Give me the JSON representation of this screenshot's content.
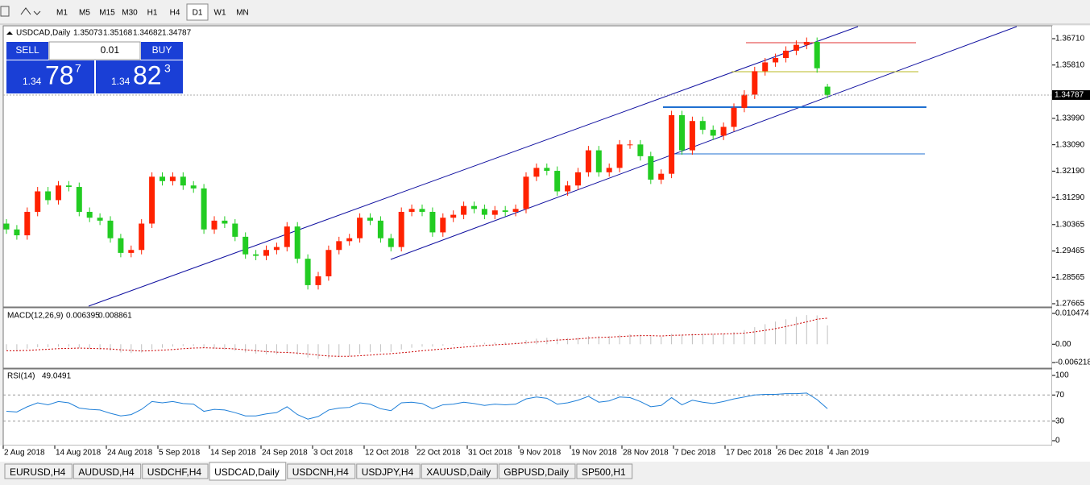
{
  "toolbar": {
    "timeframes": [
      "M1",
      "M5",
      "M15",
      "M30",
      "H1",
      "H4",
      "D1",
      "W1",
      "MN"
    ],
    "active_timeframe": 6
  },
  "chart": {
    "symbol": "USDCAD,Daily",
    "up_color": "#ff2200",
    "down_color": "#22cc22",
    "trade_panel": {
      "sell": "SELL",
      "buy": "BUY",
      "lot": "0.01",
      "bid": {
        "big": "1.34",
        "main": "78",
        "pip": "7"
      },
      "ask": {
        "big": "1.34",
        "main": "82",
        "pip": "3"
      }
    },
    "price_axis": {
      "range": [
        1.27665,
        1.3671
      ],
      "ticks": [
        {
          "value": 1.3671,
          "label": "1.36710"
        },
        {
          "value": 1.3581,
          "label": "1.35810"
        },
        {
          "value": 1.3399,
          "label": "1.33990"
        },
        {
          "value": 1.3309,
          "label": "1.33090"
        },
        {
          "value": 1.3219,
          "label": "1.32190"
        },
        {
          "value": 1.3129,
          "label": "1.31290"
        },
        {
          "value": 1.30365,
          "label": "1.30365"
        },
        {
          "value": 1.29465,
          "label": "1.29465"
        },
        {
          "value": 1.28565,
          "label": "1.28565"
        },
        {
          "value": 1.27665,
          "label": "1.27665"
        }
      ]
    },
    "candles": [
      [
        1.304,
        1.3055,
        1.3005,
        1.302
      ],
      [
        1.302,
        1.3035,
        1.2985,
        1.3
      ],
      [
        1.3,
        1.3095,
        1.2985,
        1.308
      ],
      [
        1.308,
        1.3165,
        1.3065,
        1.315
      ],
      [
        1.315,
        1.3165,
        1.3105,
        1.312
      ],
      [
        1.312,
        1.3185,
        1.3105,
        1.317
      ],
      [
        1.317,
        1.3185,
        1.315,
        1.3165
      ],
      [
        1.3165,
        1.318,
        1.3065,
        1.308
      ],
      [
        1.308,
        1.3095,
        1.3045,
        1.306
      ],
      [
        1.306,
        1.3075,
        1.3035,
        1.305
      ],
      [
        1.305,
        1.3065,
        1.2975,
        1.299
      ],
      [
        1.299,
        1.3005,
        1.2925,
        1.294
      ],
      [
        1.294,
        1.2965,
        1.2925,
        1.295
      ],
      [
        1.295,
        1.3055,
        1.2935,
        1.304
      ],
      [
        1.304,
        1.3215,
        1.3025,
        1.32
      ],
      [
        1.32,
        1.3215,
        1.317,
        1.3185
      ],
      [
        1.3185,
        1.3215,
        1.317,
        1.32
      ],
      [
        1.32,
        1.3215,
        1.3155,
        1.317
      ],
      [
        1.317,
        1.3185,
        1.3145,
        1.316
      ],
      [
        1.316,
        1.3175,
        1.3005,
        1.302
      ],
      [
        1.302,
        1.3065,
        1.3005,
        1.305
      ],
      [
        1.305,
        1.3065,
        1.3025,
        1.304
      ],
      [
        1.304,
        1.3055,
        1.298,
        1.2995
      ],
      [
        1.2995,
        1.301,
        1.292,
        1.2935
      ],
      [
        1.2935,
        1.295,
        1.2915,
        1.293
      ],
      [
        1.293,
        1.2965,
        1.2915,
        1.295
      ],
      [
        1.295,
        1.2975,
        1.2935,
        1.296
      ],
      [
        1.296,
        1.3045,
        1.2945,
        1.303
      ],
      [
        1.303,
        1.3045,
        1.2905,
        1.292
      ],
      [
        1.292,
        1.2935,
        1.2815,
        1.283
      ],
      [
        1.283,
        1.2875,
        1.2815,
        1.286
      ],
      [
        1.286,
        1.2965,
        1.2845,
        1.295
      ],
      [
        1.295,
        1.2995,
        1.2935,
        1.298
      ],
      [
        1.298,
        1.3005,
        1.2965,
        1.299
      ],
      [
        1.299,
        1.3075,
        1.2975,
        1.306
      ],
      [
        1.306,
        1.3075,
        1.3035,
        1.305
      ],
      [
        1.305,
        1.3065,
        1.2975,
        1.299
      ],
      [
        1.299,
        1.3005,
        1.2945,
        1.296
      ],
      [
        1.296,
        1.3095,
        1.2945,
        1.308
      ],
      [
        1.308,
        1.3105,
        1.3065,
        1.309
      ],
      [
        1.309,
        1.3105,
        1.3065,
        1.308
      ],
      [
        1.308,
        1.3095,
        1.2995,
        1.301
      ],
      [
        1.301,
        1.3075,
        1.2995,
        1.306
      ],
      [
        1.306,
        1.3085,
        1.3045,
        1.307
      ],
      [
        1.307,
        1.3115,
        1.3055,
        1.31
      ],
      [
        1.31,
        1.3115,
        1.3075,
        1.309
      ],
      [
        1.309,
        1.3105,
        1.3055,
        1.307
      ],
      [
        1.307,
        1.31,
        1.3055,
        1.3085
      ],
      [
        1.3085,
        1.31,
        1.3065,
        1.308
      ],
      [
        1.308,
        1.3105,
        1.3065,
        1.309
      ],
      [
        1.309,
        1.3215,
        1.3075,
        1.32
      ],
      [
        1.32,
        1.3245,
        1.3185,
        1.323
      ],
      [
        1.323,
        1.3245,
        1.3205,
        1.322
      ],
      [
        1.322,
        1.3235,
        1.3135,
        1.315
      ],
      [
        1.315,
        1.3185,
        1.3135,
        1.317
      ],
      [
        1.317,
        1.323,
        1.3155,
        1.3215
      ],
      [
        1.3215,
        1.3305,
        1.32,
        1.329
      ],
      [
        1.329,
        1.3305,
        1.32,
        1.3215
      ],
      [
        1.3215,
        1.3245,
        1.32,
        1.323
      ],
      [
        1.323,
        1.3325,
        1.3215,
        1.331
      ],
      [
        1.331,
        1.3325,
        1.3295,
        1.331
      ],
      [
        1.331,
        1.3325,
        1.3255,
        1.327
      ],
      [
        1.327,
        1.3285,
        1.3175,
        1.319
      ],
      [
        1.319,
        1.3225,
        1.3175,
        1.321
      ],
      [
        1.321,
        1.3425,
        1.3195,
        1.341
      ],
      [
        1.341,
        1.3425,
        1.3275,
        1.329
      ],
      [
        1.329,
        1.3405,
        1.3275,
        1.339
      ],
      [
        1.339,
        1.3405,
        1.3345,
        1.336
      ],
      [
        1.336,
        1.3375,
        1.3325,
        1.334
      ],
      [
        1.334,
        1.3385,
        1.3325,
        1.337
      ],
      [
        1.337,
        1.345,
        1.3355,
        1.3435
      ],
      [
        1.3435,
        1.3495,
        1.342,
        1.348
      ],
      [
        1.348,
        1.3575,
        1.3465,
        1.356
      ],
      [
        1.356,
        1.3605,
        1.3545,
        1.359
      ],
      [
        1.359,
        1.362,
        1.3575,
        1.3605
      ],
      [
        1.3605,
        1.3645,
        1.359,
        1.363
      ],
      [
        1.363,
        1.3665,
        1.3615,
        1.365
      ],
      [
        1.365,
        1.3675,
        1.3635,
        1.366
      ],
      [
        1.366,
        1.3675,
        1.3555,
        1.357
      ],
      [
        1.35073,
        1.35168,
        1.34682,
        1.34787
      ]
    ],
    "dates": [
      "2 Aug 2018",
      "14 Aug 2018",
      "24 Aug 2018",
      "5 Sep 2018",
      "14 Sep 2018",
      "24 Sep 2018",
      "3 Oct 2018",
      "12 Oct 2018",
      "22 Oct 2018",
      "31 Oct 2018",
      "9 Nov 2018",
      "19 Nov 2018",
      "28 Nov 2018",
      "7 Dec 2018",
      "17 Dec 2018",
      "26 Dec 2018",
      "4 Jan 2019"
    ]
  },
  "macd": {
    "title": "MACD(12,26,9)",
    "range": [
      -0.006218,
      0.010474
    ],
    "ticks": [
      0.010474,
      {
        "value": 0,
        "label": "0.00"
      },
      -0.006218
    ],
    "bar_color": "#c0c0c0",
    "signal_color": "#cc0000",
    "values": [
      -0.002,
      -0.002,
      -0.0015,
      -0.001,
      -0.001,
      -0.0008,
      -0.0008,
      -0.0012,
      -0.0015,
      -0.0018,
      -0.0022,
      -0.0028,
      -0.003,
      -0.0028,
      -0.0018,
      -0.0012,
      -0.0008,
      -0.0006,
      -0.0006,
      -0.0012,
      -0.0015,
      -0.0018,
      -0.0022,
      -0.0028,
      -0.0032,
      -0.0034,
      -0.0034,
      -0.003,
      -0.0035,
      -0.0045,
      -0.005,
      -0.0048,
      -0.0044,
      -0.004,
      -0.0032,
      -0.0027,
      -0.0026,
      -0.0026,
      -0.0018,
      -0.0012,
      -0.0008,
      -0.0008,
      -0.0005,
      -0.0002,
      0.0002,
      0.0004,
      0.0005,
      0.0006,
      0.0007,
      0.0008,
      0.0014,
      0.0019,
      0.0022,
      0.0021,
      0.0021,
      0.0022,
      0.0028,
      0.0028,
      0.0028,
      0.0032,
      0.0034,
      0.0033,
      0.0027,
      0.0025,
      0.0035,
      0.0033,
      0.0036,
      0.0036,
      0.0035,
      0.0036,
      0.0041,
      0.0048,
      0.0058,
      0.0068,
      0.0077,
      0.0085,
      0.0093,
      0.0099,
      0.0098,
      0.006395
    ],
    "signal": [
      -0.0022,
      -0.0022,
      -0.0021,
      -0.0019,
      -0.0017,
      -0.0015,
      -0.0014,
      -0.0013,
      -0.0014,
      -0.0015,
      -0.0016,
      -0.0019,
      -0.0021,
      -0.0023,
      -0.0022,
      -0.002,
      -0.0018,
      -0.0015,
      -0.0013,
      -0.0012,
      -0.0013,
      -0.0014,
      -0.0016,
      -0.0019,
      -0.0022,
      -0.0025,
      -0.0027,
      -0.0028,
      -0.003,
      -0.0033,
      -0.0037,
      -0.004,
      -0.0041,
      -0.0041,
      -0.0039,
      -0.0037,
      -0.0034,
      -0.0032,
      -0.0029,
      -0.0026,
      -0.0022,
      -0.0019,
      -0.0016,
      -0.0013,
      -0.001,
      -0.0007,
      -0.0004,
      -0.0002,
      0,
      0.0002,
      0.0005,
      0.0008,
      0.0011,
      0.0014,
      0.0016,
      0.0018,
      0.0021,
      0.0023,
      0.0024,
      0.0026,
      0.0028,
      0.0029,
      0.0029,
      0.0028,
      0.003,
      0.0031,
      0.0032,
      0.0033,
      0.0034,
      0.0035,
      0.0036,
      0.0038,
      0.0042,
      0.0047,
      0.0053,
      0.006,
      0.0068,
      0.0076,
      0.0085,
      0.008861
    ]
  },
  "rsi": {
    "title": "RSI(14)",
    "range": [
      0,
      100
    ],
    "ticks": [
      100,
      70,
      30,
      0
    ],
    "color": "#1e7fd8",
    "values": [
      45,
      44,
      52,
      58,
      55,
      60,
      58,
      50,
      48,
      47,
      42,
      38,
      40,
      48,
      60,
      58,
      60,
      57,
      56,
      45,
      48,
      47,
      43,
      38,
      38,
      41,
      43,
      52,
      40,
      33,
      37,
      47,
      50,
      51,
      58,
      56,
      49,
      46,
      58,
      59,
      57,
      49,
      55,
      56,
      59,
      57,
      54,
      56,
      55,
      56,
      64,
      67,
      65,
      56,
      58,
      62,
      68,
      59,
      61,
      67,
      66,
      60,
      52,
      54,
      66,
      55,
      62,
      59,
      57,
      60,
      64,
      67,
      70,
      71,
      71,
      72,
      72,
      73,
      63,
      49.0491
    ]
  },
  "tabs": [
    "EURUSD,H4",
    "AUDUSD,H4",
    "USDCHF,H4",
    "USDCAD,Daily",
    "USDCNH,H4",
    "USDJPY,H4",
    "XAUUSD,Daily",
    "GBPUSD,Daily",
    "SP500,H1"
  ],
  "active_tab": 3
}
